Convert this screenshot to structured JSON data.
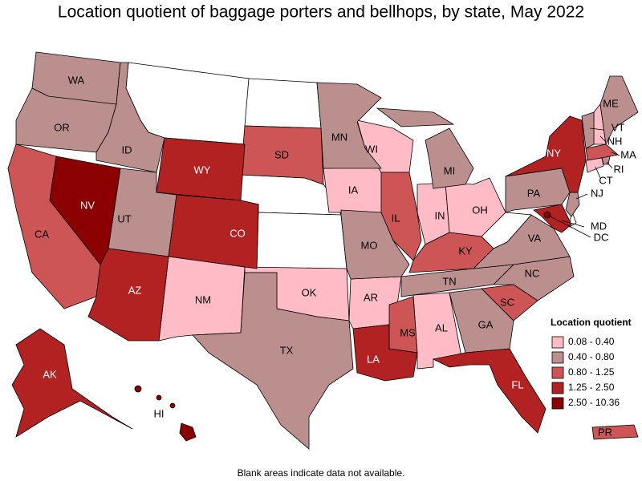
{
  "title": "Location quotient of baggage porters and bellhops, by state, May 2022",
  "note": "Blank areas indicate data not available.",
  "legend": {
    "title": "Location quotient",
    "bins": [
      {
        "label": "0.08 - 0.40",
        "color": "#ffbcc6",
        "states": [
          "NH",
          "IA",
          "WI",
          "IN",
          "OH",
          "NM",
          "OK",
          "AR",
          "AL",
          "CT"
        ]
      },
      {
        "label": "0.40 - 0.80",
        "color": "#bc8f8f",
        "states": [
          "WA",
          "OR",
          "ID",
          "UT",
          "MN",
          "MI",
          "MO",
          "TX",
          "TN",
          "NC",
          "GA",
          "VA",
          "PA",
          "ME",
          "VT",
          "NJ",
          "RI"
        ]
      },
      {
        "label": "0.80 - 1.25",
        "color": "#cd5555",
        "states": [
          "CA",
          "SD",
          "IL",
          "KY",
          "MS",
          "SC",
          "MA",
          "PR"
        ]
      },
      {
        "label": "1.25 - 2.50",
        "color": "#b22222",
        "states": [
          "WY",
          "CO",
          "AZ",
          "NY",
          "LA",
          "FL",
          "AK",
          "MD"
        ]
      },
      {
        "label": "2.50 - 10.36",
        "color": "#8b0000",
        "states": [
          "NV",
          "HI",
          "DC"
        ]
      }
    ]
  }
}
